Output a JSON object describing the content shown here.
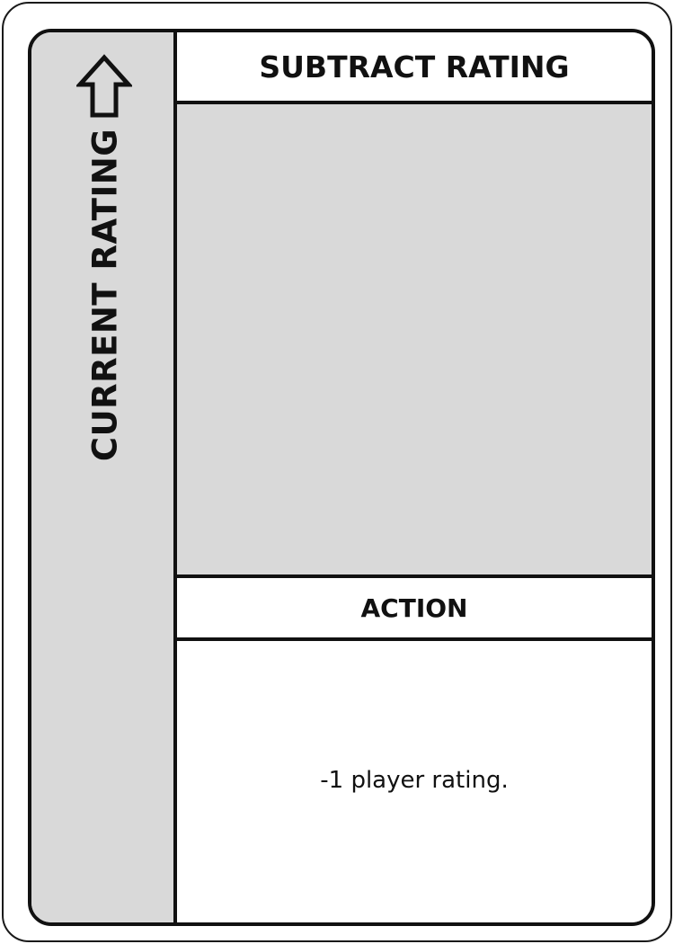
{
  "card": {
    "title": "SUBTRACT RATING",
    "side_label": "CURRENT RATING",
    "side_icon": "arrow-up-outline-icon",
    "section_heading": "ACTION",
    "description": "-1 player rating."
  },
  "colors": {
    "border": "#111111",
    "panel_fill": "#d9d9d9",
    "background": "#ffffff"
  }
}
